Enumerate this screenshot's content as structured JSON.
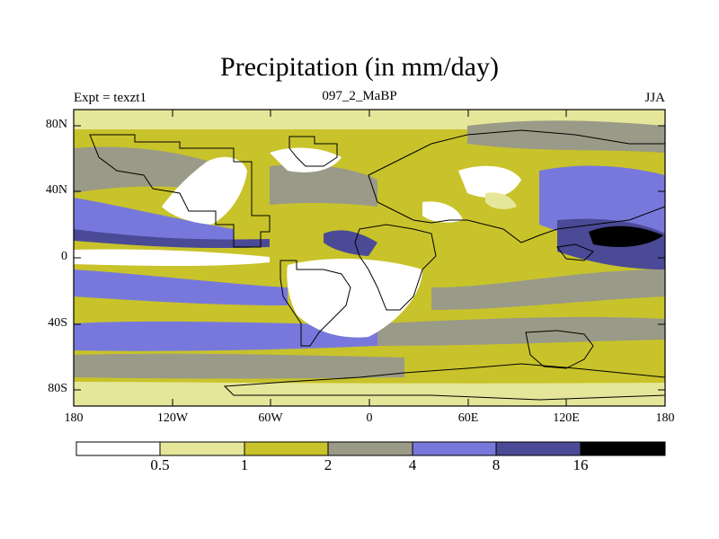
{
  "title": "Precipitation (in mm/day)",
  "subtitle_left": "Expt = texzt1",
  "subtitle_center": "097_2_MaBP",
  "subtitle_right": "JJA",
  "lat_ticks": [
    "80N",
    "40N",
    "0",
    "40S",
    "80S"
  ],
  "lon_ticks": [
    "180",
    "120W",
    "60W",
    "0",
    "60E",
    "120E",
    "180"
  ],
  "colorbar": {
    "labels": [
      "0.5",
      "1",
      "2",
      "4",
      "8",
      "16"
    ],
    "colors": [
      "#ffffff",
      "#e6e69a",
      "#c8c32a",
      "#9a9a88",
      "#7878dc",
      "#4a4a96",
      "#000000"
    ]
  }
}
